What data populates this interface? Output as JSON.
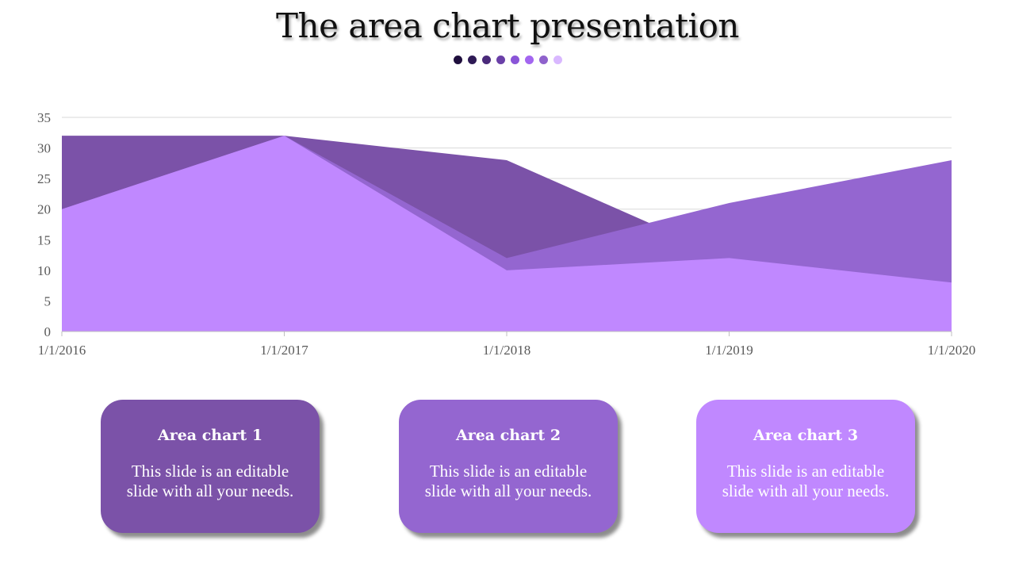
{
  "title": "The area chart presentation",
  "dot_colors": [
    "#1f0f3d",
    "#2e1a55",
    "#4a2a7a",
    "#6a40a8",
    "#8a55d8",
    "#a366f0",
    "#8f62cc",
    "#d9b8ff"
  ],
  "chart_data": {
    "type": "area",
    "x": [
      "1/1/2016",
      "1/1/2017",
      "1/1/2018",
      "1/1/2019",
      "1/1/2020"
    ],
    "ylim": [
      0,
      35
    ],
    "yticks": [
      0,
      5,
      10,
      15,
      20,
      25,
      30,
      35
    ],
    "grid": true,
    "series": [
      {
        "values": [
          32,
          32,
          28,
          12,
          8
        ],
        "color": "#7b52a8"
      },
      {
        "values": [
          20,
          32,
          12,
          21,
          28
        ],
        "color": "#9466d0"
      },
      {
        "values": [
          20,
          32,
          10,
          12,
          8
        ],
        "color": "#c088ff"
      }
    ]
  },
  "cards": [
    {
      "title": "Area chart 1",
      "text": "This slide is an editable slide with all your needs.",
      "color": "#7b52a8"
    },
    {
      "title": "Area chart 2",
      "text": "This slide is an editable slide with all your needs.",
      "color": "#9466d0"
    },
    {
      "title": "Area chart 3",
      "text": "This slide is an editable slide with all your needs.",
      "color": "#c088ff"
    }
  ]
}
